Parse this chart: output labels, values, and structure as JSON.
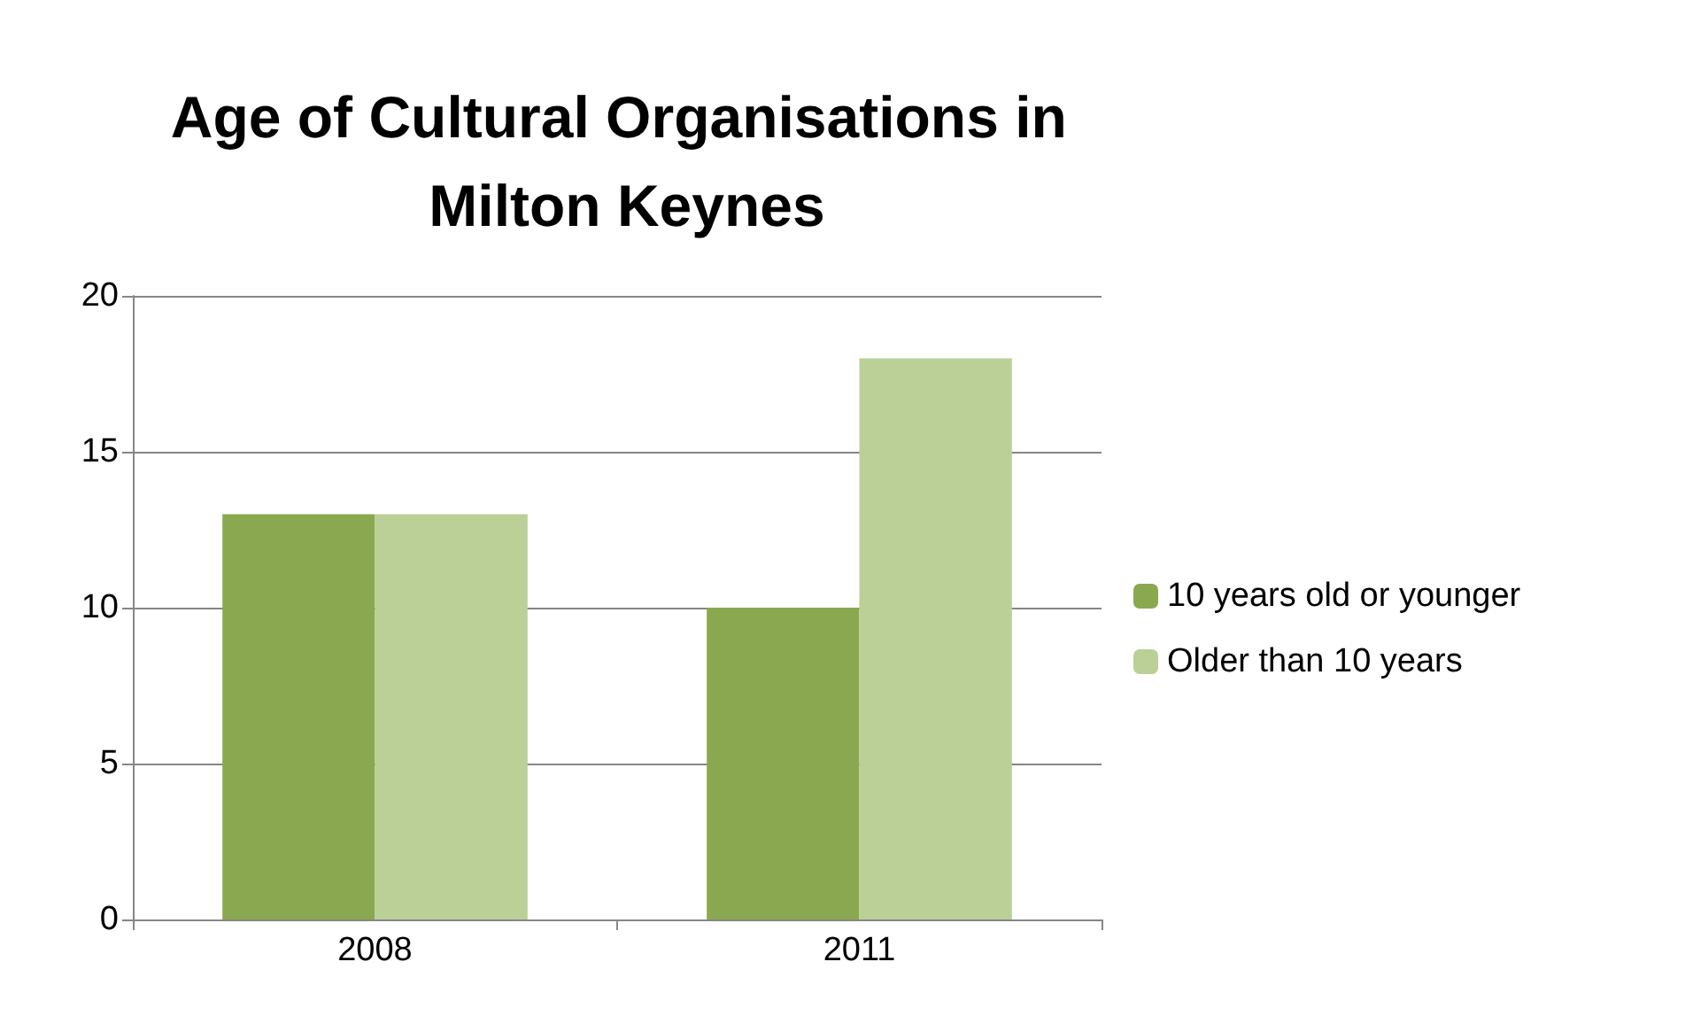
{
  "chart_data": {
    "type": "bar",
    "title": "Age of Cultural Organisations in Milton Keynes",
    "categories": [
      "2008",
      "2011"
    ],
    "series": [
      {
        "name": "10 years old or younger",
        "color": "#8aa84f",
        "values": [
          13,
          10
        ]
      },
      {
        "name": "Older than 10 years",
        "color": "#bad097",
        "values": [
          13,
          18
        ]
      }
    ],
    "ylim": [
      0,
      20
    ],
    "yticks": [
      0,
      5,
      10,
      15,
      20
    ],
    "grid": "y",
    "legend": "right"
  }
}
